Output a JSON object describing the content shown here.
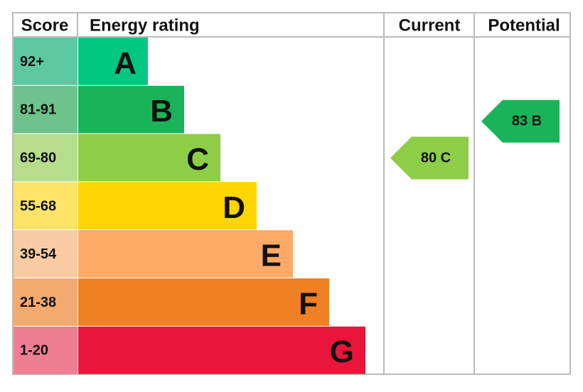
{
  "header": {
    "score": "Score",
    "energy_rating": "Energy rating",
    "current": "Current",
    "potential": "Potential"
  },
  "rows": [
    {
      "score": "92+",
      "letter": "A",
      "score_color": "#5ec8a2",
      "bar_color": "#00c781"
    },
    {
      "score": "81-91",
      "letter": "B",
      "score_color": "#6cc38b",
      "bar_color": "#19b459"
    },
    {
      "score": "69-80",
      "letter": "C",
      "score_color": "#b6dd8c",
      "bar_color": "#8dce46"
    },
    {
      "score": "55-68",
      "letter": "D",
      "score_color": "#fee36b",
      "bar_color": "#ffd500"
    },
    {
      "score": "39-54",
      "letter": "E",
      "score_color": "#f9cba2",
      "bar_color": "#fcaa65"
    },
    {
      "score": "21-38",
      "letter": "F",
      "score_color": "#f3aa6f",
      "bar_color": "#ef8023"
    },
    {
      "score": "1-20",
      "letter": "G",
      "score_color": "#ef7e92",
      "bar_color": "#e9153b"
    }
  ],
  "current": {
    "label": "80 C",
    "row": 2
  },
  "potential": {
    "label": "83 B",
    "row": 1
  }
}
